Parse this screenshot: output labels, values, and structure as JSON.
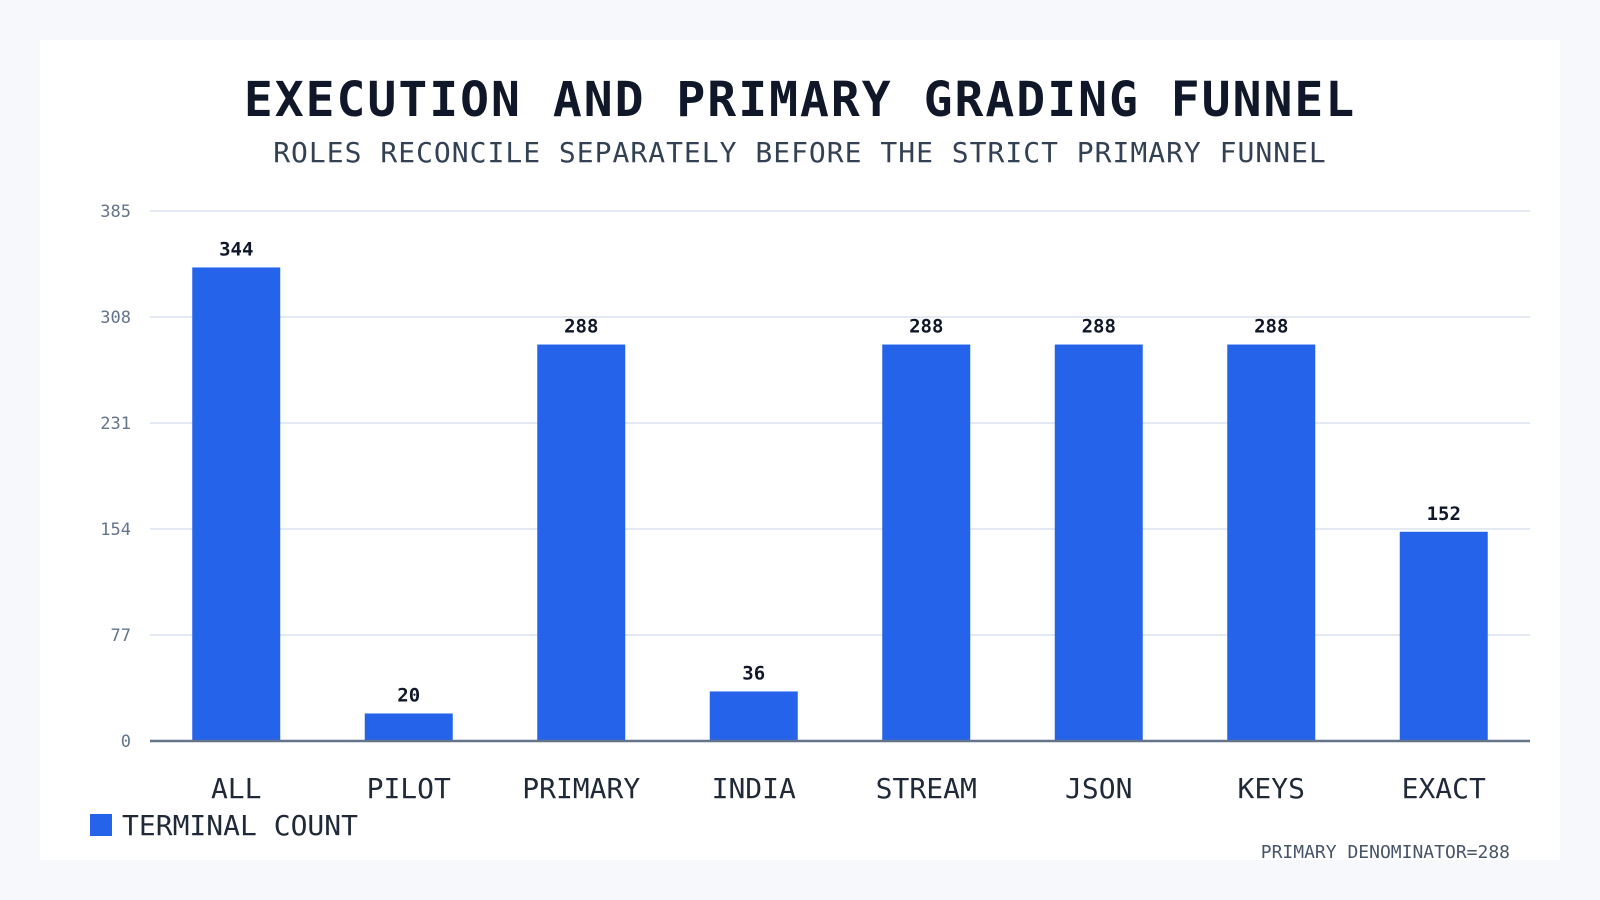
{
  "chart_data": {
    "type": "bar",
    "title": "EXECUTION AND PRIMARY GRADING FUNNEL",
    "subtitle": "ROLES RECONCILE SEPARATELY BEFORE THE STRICT PRIMARY FUNNEL",
    "categories": [
      "ALL",
      "PILOT",
      "PRIMARY",
      "INDIA",
      "STREAM",
      "JSON",
      "KEYS",
      "EXACT"
    ],
    "series": [
      {
        "name": "TERMINAL COUNT",
        "values": [
          344,
          20,
          288,
          36,
          288,
          288,
          288,
          152
        ]
      }
    ],
    "ylim": [
      0,
      385
    ],
    "yticks": [
      0,
      77,
      154,
      231,
      308,
      385
    ],
    "grid": true,
    "legend_position": "bottom-left",
    "annotation": "PRIMARY DENOMINATOR=288",
    "colors": {
      "bar": "#2563eb",
      "grid": "#dbe3ef",
      "axis": "#64748b"
    }
  }
}
